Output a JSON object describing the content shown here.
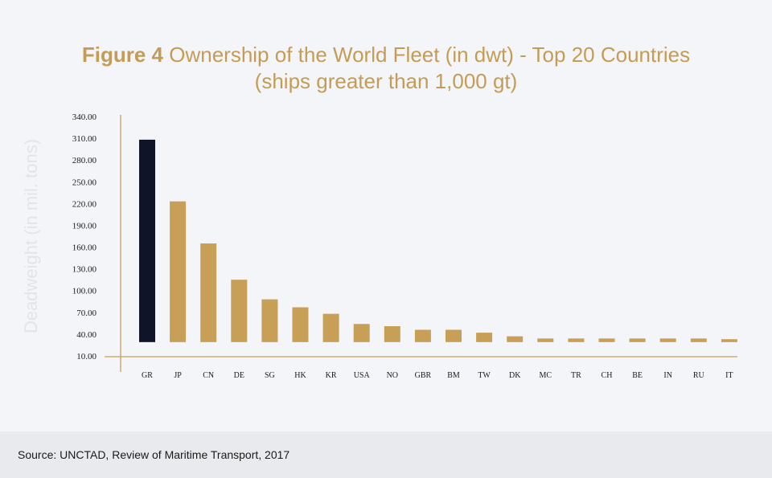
{
  "chart_data": {
    "type": "bar",
    "title_bold": "Figure 4",
    "title": "Ownership of the World Fleet (in dwt) - Top 20 Countries",
    "subtitle": "(ships greater than 1,000 gt)",
    "xlabel": "",
    "ylabel": "Deadweight (in mil. tons)",
    "ylim": [
      10,
      340
    ],
    "yticks": [
      "340.00",
      "310.00",
      "280.00",
      "250.00",
      "220.00",
      "190.00",
      "160.00",
      "130.00",
      "100.00",
      "70.00",
      "40.00",
      "10.00"
    ],
    "categories": [
      "GR",
      "JP",
      "CN",
      "DE",
      "SG",
      "HK",
      "KR",
      "USA",
      "NO",
      "GBR",
      "BM",
      "TW",
      "DK",
      "MC",
      "TR",
      "CH",
      "BE",
      "IN",
      "RU",
      "IT"
    ],
    "values": [
      308,
      223,
      165,
      115,
      88,
      77,
      68,
      54,
      51,
      46,
      46,
      42,
      37,
      34,
      34,
      34,
      34,
      34,
      34,
      33
    ],
    "baseline": 29,
    "highlight_index": 0,
    "colors": {
      "bar": "#c89f57",
      "highlight": "#0f1428",
      "axis": "#c89f57",
      "title": "#c49c55"
    }
  },
  "footer": {
    "source": "Source: UNCTAD, Review of Maritime Transport, 2017"
  }
}
